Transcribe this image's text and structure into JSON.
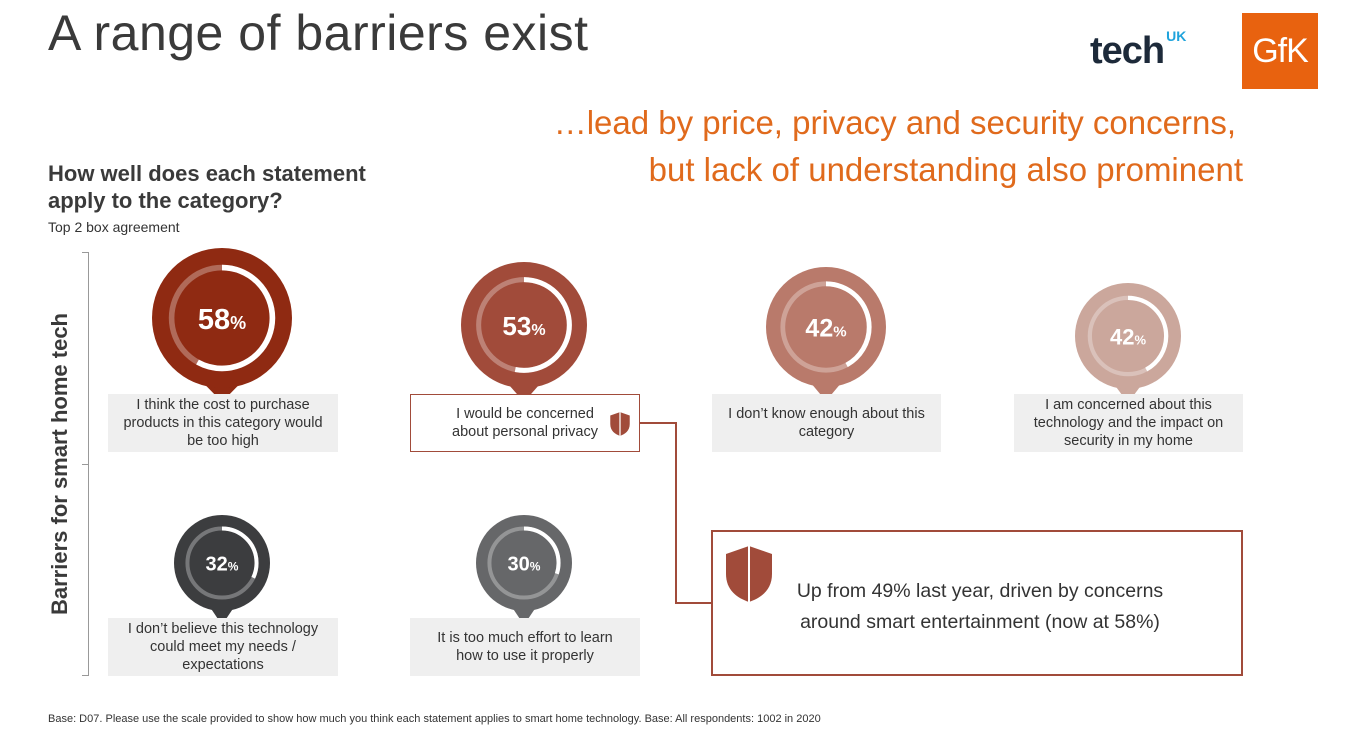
{
  "header": {
    "title": "A range of barriers exist",
    "logo_tech": "tech",
    "logo_tech_suffix": "UK",
    "logo_gfk": "GfK",
    "headline_line1": "…lead by price, privacy and security concerns,",
    "headline_line2": "but lack of understanding also prominent"
  },
  "question": {
    "title": "How well does each statement apply to the category?",
    "subtitle": "Top 2 box agreement"
  },
  "chart_data": {
    "type": "donut-pins",
    "ylabel": "Barriers for smart home tech",
    "value_suffix": "%",
    "items": [
      {
        "value": 58,
        "label": "I think the cost to purchase products in this category would be too high",
        "color": "#8f2a12"
      },
      {
        "value": 53,
        "label": "I would be concerned about personal privacy",
        "color": "#a14b3a",
        "icon": "shield-icon"
      },
      {
        "value": 42,
        "label": "I don’t know enough about this category",
        "color": "#b97a6b"
      },
      {
        "value": 42,
        "label": "I am concerned about this technology and the impact on security in my home",
        "color": "#cba79c"
      },
      {
        "value": 32,
        "label": "I don’t believe this technology could meet my needs / expectations",
        "color": "#3c3d3f"
      },
      {
        "value": 30,
        "label": "It is too much effort to learn how to use it properly",
        "color": "#666769"
      }
    ]
  },
  "callout": {
    "text": "Up from 49% last year, driven by concerns around smart entertainment (now at 58%)",
    "icon": "shield-icon"
  },
  "footnote": "Base: D07. Please use the scale provided to show how much you think each statement applies to smart home technology. Base: All respondents: 1002 in 2020"
}
